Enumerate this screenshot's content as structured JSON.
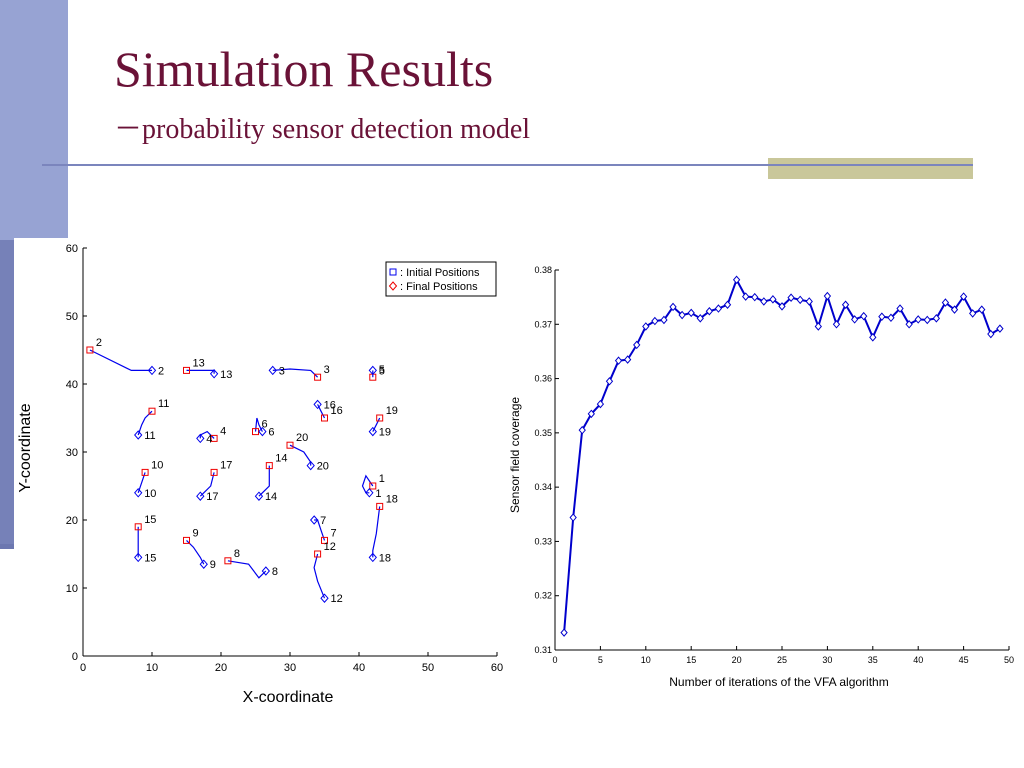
{
  "slide": {
    "title": "Simulation Results",
    "subtitle": "－probability sensor detection model",
    "colors": {
      "title": "#6a1237",
      "sidebar": "#97a3d3",
      "accent_block": "#c9c79a",
      "rule": "#7b85bd"
    }
  },
  "chart_data": [
    {
      "type": "scatter",
      "title": "",
      "xlabel": "X-coordinate",
      "ylabel": "Y-coordinate",
      "xlim": [
        0,
        60
      ],
      "ylim": [
        0,
        60
      ],
      "xticks": [
        0,
        10,
        20,
        30,
        40,
        50,
        60
      ],
      "yticks": [
        0,
        10,
        20,
        30,
        40,
        50,
        60
      ],
      "legend": {
        "placement": "top-right",
        "entries": [
          ": Initial Positions",
          ": Final Positions"
        ],
        "colors": [
          "#0000ee",
          "#ee0000"
        ]
      },
      "sensors": [
        {
          "id": "1",
          "initial": [
            42,
            25
          ],
          "final": [
            41.5,
            24
          ],
          "path": [
            [
              42,
              25
            ],
            [
              41,
              26.5
            ],
            [
              40.5,
              25
            ],
            [
              41,
              24
            ],
            [
              41.5,
              24
            ]
          ]
        },
        {
          "id": "2",
          "initial": [
            1,
            45
          ],
          "final": [
            10,
            42
          ],
          "path": [
            [
              1,
              45
            ],
            [
              7,
              42
            ],
            [
              10,
              42
            ]
          ]
        },
        {
          "id": "3",
          "initial": [
            34,
            41
          ],
          "final": [
            27.5,
            42
          ],
          "path": [
            [
              34,
              41
            ],
            [
              33,
              42
            ],
            [
              30,
              42.2
            ],
            [
              27.5,
              42
            ]
          ]
        },
        {
          "id": "4",
          "initial": [
            19,
            32
          ],
          "final": [
            17,
            32
          ],
          "path": [
            [
              19,
              32
            ],
            [
              18,
              33
            ],
            [
              17,
              32.5
            ],
            [
              17,
              32
            ]
          ]
        },
        {
          "id": "5",
          "initial": [
            42,
            41
          ],
          "final": [
            42,
            42
          ],
          "path": [
            [
              42,
              41
            ],
            [
              42,
              42
            ]
          ]
        },
        {
          "id": "6",
          "initial": [
            25,
            33
          ],
          "final": [
            26,
            33
          ],
          "path": [
            [
              25,
              33
            ],
            [
              25.2,
              35
            ],
            [
              25.5,
              34
            ],
            [
              26,
              33
            ]
          ]
        },
        {
          "id": "7",
          "initial": [
            35,
            17
          ],
          "final": [
            33.5,
            20
          ],
          "path": [
            [
              35,
              17
            ],
            [
              34.5,
              18.5
            ],
            [
              34,
              20
            ],
            [
              33.5,
              20
            ]
          ]
        },
        {
          "id": "8",
          "initial": [
            21,
            14
          ],
          "final": [
            26.5,
            12.5
          ],
          "path": [
            [
              21,
              14
            ],
            [
              24,
              13.5
            ],
            [
              25.5,
              11.5
            ],
            [
              26.5,
              12.5
            ]
          ]
        },
        {
          "id": "9",
          "initial": [
            15,
            17
          ],
          "final": [
            17.5,
            13.5
          ],
          "path": [
            [
              15,
              17
            ],
            [
              16,
              16
            ],
            [
              17,
              14.5
            ],
            [
              17.5,
              13.5
            ]
          ]
        },
        {
          "id": "10",
          "initial": [
            9,
            27
          ],
          "final": [
            8,
            24
          ],
          "path": [
            [
              9,
              27
            ],
            [
              8.5,
              25.5
            ],
            [
              8,
              24
            ]
          ]
        },
        {
          "id": "11",
          "initial": [
            10,
            36
          ],
          "final": [
            8,
            32.5
          ],
          "path": [
            [
              10,
              36
            ],
            [
              9,
              35
            ],
            [
              8.5,
              34
            ],
            [
              8,
              32.5
            ]
          ]
        },
        {
          "id": "12",
          "initial": [
            34,
            15
          ],
          "final": [
            35,
            8.5
          ],
          "path": [
            [
              34,
              15
            ],
            [
              33.5,
              13
            ],
            [
              34,
              11
            ],
            [
              35,
              8.5
            ]
          ]
        },
        {
          "id": "13",
          "initial": [
            15,
            42
          ],
          "final": [
            19,
            41.5
          ],
          "path": [
            [
              15,
              42
            ],
            [
              17,
              42
            ],
            [
              19,
              42
            ],
            [
              19,
              41.5
            ]
          ]
        },
        {
          "id": "14",
          "initial": [
            27,
            28
          ],
          "final": [
            25.5,
            23.5
          ],
          "path": [
            [
              27,
              28
            ],
            [
              27,
              25
            ],
            [
              26,
              24
            ],
            [
              25.5,
              23.5
            ]
          ]
        },
        {
          "id": "15",
          "initial": [
            8,
            19
          ],
          "final": [
            8,
            14.5
          ],
          "path": [
            [
              8,
              19
            ],
            [
              8,
              16
            ],
            [
              8,
              14.5
            ]
          ]
        },
        {
          "id": "16",
          "initial": [
            35,
            35
          ],
          "final": [
            34,
            37
          ],
          "path": [
            [
              35,
              35
            ],
            [
              34.5,
              36
            ],
            [
              34,
              37
            ]
          ]
        },
        {
          "id": "17",
          "initial": [
            19,
            27
          ],
          "final": [
            17,
            23.5
          ],
          "path": [
            [
              19,
              27
            ],
            [
              18.5,
              25
            ],
            [
              17.5,
              24
            ],
            [
              17,
              23.5
            ]
          ]
        },
        {
          "id": "18",
          "initial": [
            43,
            22
          ],
          "final": [
            42,
            14.5
          ],
          "path": [
            [
              43,
              22
            ],
            [
              42.5,
              18
            ],
            [
              42,
              15.5
            ],
            [
              42,
              14.5
            ]
          ]
        },
        {
          "id": "19",
          "initial": [
            43,
            35
          ],
          "final": [
            42,
            33
          ],
          "path": [
            [
              43,
              35
            ],
            [
              42.5,
              34
            ],
            [
              42,
              33
            ]
          ]
        },
        {
          "id": "20",
          "initial": [
            30,
            31
          ],
          "final": [
            33,
            28
          ],
          "path": [
            [
              30,
              31
            ],
            [
              32,
              30
            ],
            [
              33,
              28.5
            ],
            [
              33,
              28
            ]
          ]
        }
      ]
    },
    {
      "type": "line",
      "title": "",
      "xlabel": "Number of iterations of the VFA algorithm",
      "ylabel": "Sensor field coverage",
      "xlim": [
        0,
        50
      ],
      "ylim": [
        0.31,
        0.38
      ],
      "xticks": [
        0,
        5,
        10,
        15,
        20,
        25,
        30,
        35,
        40,
        45,
        50
      ],
      "yticks": [
        "0.31",
        "0.32",
        "0.33",
        "0.34",
        "0.35",
        "0.36",
        "0.37",
        "0.38"
      ],
      "x": [
        1,
        2,
        3,
        4,
        5,
        6,
        7,
        8,
        9,
        10,
        11,
        12,
        13,
        14,
        15,
        16,
        17,
        18,
        19,
        20,
        21,
        22,
        23,
        24,
        25,
        26,
        27,
        28,
        29,
        30,
        31,
        32,
        33,
        34,
        35,
        36,
        37,
        38,
        39,
        40,
        41,
        42,
        43,
        44,
        45,
        46,
        47,
        48,
        49
      ],
      "series": [
        {
          "name": "coverage",
          "color": "#0000cc",
          "values": [
            0.3132,
            0.3344,
            0.3505,
            0.3535,
            0.3553,
            0.3595,
            0.3633,
            0.3635,
            0.3662,
            0.3696,
            0.3706,
            0.3708,
            0.3732,
            0.3717,
            0.3721,
            0.3711,
            0.3724,
            0.3729,
            0.3736,
            0.3782,
            0.3751,
            0.375,
            0.3742,
            0.3746,
            0.3733,
            0.3749,
            0.3745,
            0.3742,
            0.3696,
            0.3752,
            0.37,
            0.3736,
            0.3709,
            0.3715,
            0.3676,
            0.3714,
            0.3712,
            0.3729,
            0.37,
            0.3709,
            0.3708,
            0.3711,
            0.374,
            0.3727,
            0.3751,
            0.372,
            0.3727,
            0.3682,
            0.3692
          ]
        }
      ]
    }
  ]
}
